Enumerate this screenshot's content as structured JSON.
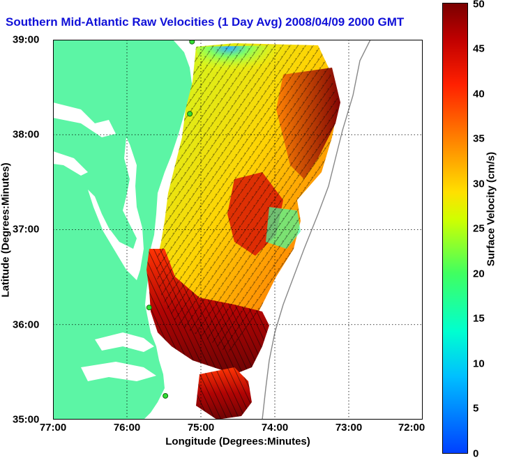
{
  "title": "Southern Mid-Atlantic Raw Velocities (1 Day Avg) 2008/04/09 2000 GMT",
  "x_axis": {
    "label": "Longitude (Degrees:Minutes)",
    "ticks": [
      "77:00",
      "76:00",
      "75:00",
      "74:00",
      "73:00",
      "72:00"
    ]
  },
  "y_axis": {
    "label": "Latitude (Degrees:Minutes)",
    "ticks": [
      "39:00",
      "38:00",
      "37:00",
      "36:00",
      "35:00"
    ]
  },
  "colorbar": {
    "label": "Surface Velocity (cm/s)",
    "ticks": [
      "50",
      "45",
      "40",
      "35",
      "30",
      "25",
      "20",
      "15",
      "10",
      "5",
      "0"
    ],
    "range": [
      0,
      50
    ]
  },
  "map": {
    "lon_range": [
      -77,
      -72
    ],
    "lat_range": [
      35,
      39
    ],
    "grid": "dotted",
    "land_color": "#5cf5a5",
    "stations": [
      {
        "lon": -75.12,
        "lat": 38.98
      },
      {
        "lon": -75.15,
        "lat": 38.22
      },
      {
        "lon": -75.7,
        "lat": 36.18
      },
      {
        "lon": -75.48,
        "lat": 35.25
      }
    ]
  }
}
